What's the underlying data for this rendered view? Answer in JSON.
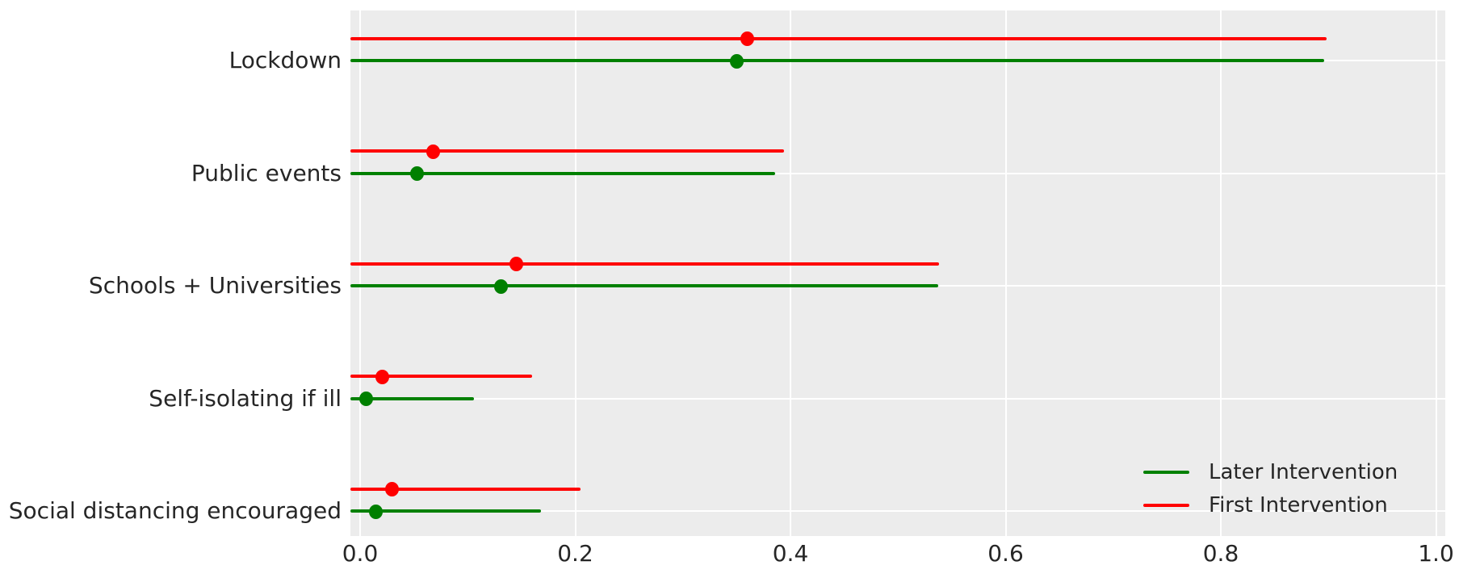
{
  "chart_data": {
    "type": "scatter",
    "subtype": "dot-and-interval forest plot, horizontal",
    "title": "",
    "xlabel": "",
    "ylabel": "",
    "categories": [
      "Lockdown",
      "Public events",
      "Schools + Universities",
      "Self-isolating if ill",
      "Social distancing encouraged"
    ],
    "series": [
      {
        "name": "Later Intervention",
        "color": "#008000",
        "points": [
          {
            "category": "Lockdown",
            "center": 0.35,
            "lo": 0.0,
            "hi": 0.896
          },
          {
            "category": "Public events",
            "center": 0.053,
            "lo": 0.0,
            "hi": 0.386
          },
          {
            "category": "Schools + Universities",
            "center": 0.131,
            "lo": 0.0,
            "hi": 0.537
          },
          {
            "category": "Self-isolating if ill",
            "center": 0.006,
            "lo": 0.0,
            "hi": 0.106
          },
          {
            "category": "Social distancing encouraged",
            "center": 0.015,
            "lo": 0.0,
            "hi": 0.168
          }
        ]
      },
      {
        "name": "First Intervention",
        "color": "#ff0000",
        "points": [
          {
            "category": "Lockdown",
            "center": 0.36,
            "lo": 0.0,
            "hi": 0.898
          },
          {
            "category": "Public events",
            "center": 0.068,
            "lo": 0.0,
            "hi": 0.394
          },
          {
            "category": "Schools + Universities",
            "center": 0.145,
            "lo": 0.0,
            "hi": 0.538
          },
          {
            "category": "Self-isolating if ill",
            "center": 0.021,
            "lo": 0.0,
            "hi": 0.16
          },
          {
            "category": "Social distancing encouraged",
            "center": 0.03,
            "lo": 0.0,
            "hi": 0.205
          }
        ]
      }
    ],
    "x_ticks": [
      {
        "label": "0.0",
        "value": 0.0
      },
      {
        "label": "0.2",
        "value": 0.2
      },
      {
        "label": "0.4",
        "value": 0.4
      },
      {
        "label": "0.6",
        "value": 0.6
      },
      {
        "label": "0.8",
        "value": 0.8
      },
      {
        "label": "1.0",
        "value": 1.0
      }
    ],
    "xlim": [
      -0.009,
      1.012
    ],
    "grid": true,
    "legend": {
      "position": "lower right",
      "entries": [
        {
          "label": "Later Intervention",
          "color": "#008000"
        },
        {
          "label": "First Intervention",
          "color": "#ff0000"
        }
      ]
    },
    "colors": {
      "panel_background": "#ececec",
      "gridline": "#ffffff",
      "text": "#262626",
      "figure_background": "#ffffff"
    }
  }
}
